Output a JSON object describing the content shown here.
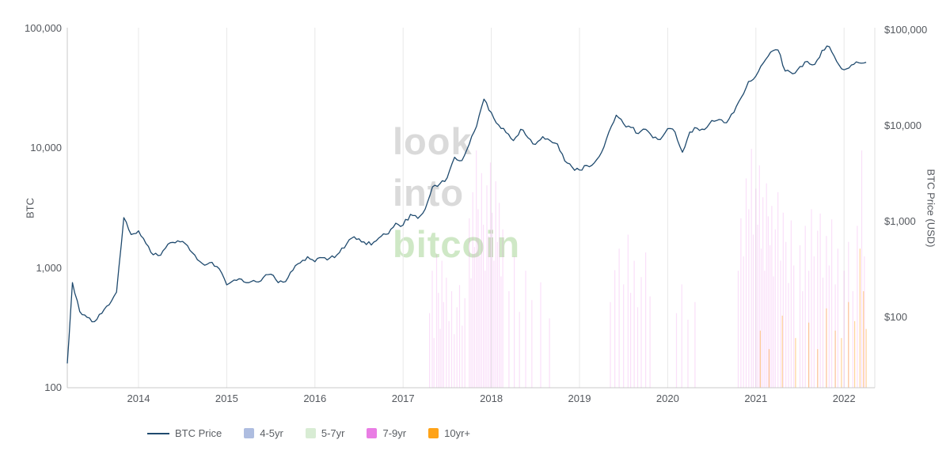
{
  "watermark": {
    "line1": "look",
    "line2": "into",
    "line3": "bitcoin",
    "gray": "#dadada",
    "green": "#cfe8c6"
  },
  "axes": {
    "left": {
      "title": "BTC",
      "tick_labels": [
        "100,000",
        "10,000",
        "1,000",
        "100"
      ],
      "tick_values": [
        100000,
        10000,
        1000,
        100
      ]
    },
    "right": {
      "title": "BTC Price (USD)",
      "tick_labels": [
        "$100,000",
        "$10,000",
        "$1,000",
        "$100"
      ],
      "tick_values": [
        100000,
        10000,
        1000,
        100
      ]
    },
    "x": {
      "tick_labels": [
        "2014",
        "2015",
        "2016",
        "2017",
        "2018",
        "2019",
        "2020",
        "2021",
        "2022"
      ],
      "tick_values": [
        2014,
        2015,
        2016,
        2017,
        2018,
        2019,
        2020,
        2021,
        2022
      ]
    }
  },
  "legend": {
    "items": [
      {
        "label": "BTC Price",
        "type": "line",
        "color": "#1f4a6e"
      },
      {
        "label": "4-5yr",
        "type": "square",
        "color": "#aebde0"
      },
      {
        "label": "5-7yr",
        "type": "square",
        "color": "#d8ecd4"
      },
      {
        "label": "7-9yr",
        "type": "square",
        "color": "#e97de4"
      },
      {
        "label": "10yr+",
        "type": "square",
        "color": "#ffa318"
      }
    ]
  },
  "chart_data": {
    "type": "line",
    "title": "",
    "x_axis": {
      "range": [
        2013.17,
        2022.3
      ],
      "ticks": [
        2014,
        2015,
        2016,
        2017,
        2018,
        2019,
        2020,
        2021,
        2022
      ]
    },
    "left_axis": {
      "label": "BTC",
      "scale": "log",
      "range": [
        100,
        100000
      ]
    },
    "right_axis": {
      "label": "BTC Price (USD)",
      "scale": "log",
      "range": [
        20,
        100000
      ]
    },
    "grid": "vertical-year-lines",
    "legend_position": "bottom",
    "series": [
      {
        "name": "BTC Price",
        "axis": "right",
        "color": "#1f4a6e",
        "x_start": 2013.1667,
        "x_step_years": 0.0833333,
        "values": [
          33,
          230,
          115,
          100,
          90,
          110,
          135,
          183,
          1100,
          732,
          800,
          590,
          450,
          445,
          580,
          600,
          620,
          500,
          400,
          350,
          375,
          320,
          218,
          245,
          250,
          230,
          235,
          262,
          282,
          230,
          236,
          310,
          370,
          430,
          380,
          420,
          415,
          450,
          530,
          670,
          660,
          575,
          610,
          700,
          745,
          960,
          920,
          1190,
          1080,
          1350,
          2300,
          2480,
          2870,
          4700,
          4340,
          6450,
          9900,
          19000,
          13800,
          10200,
          8500,
          7000,
          9200,
          7500,
          6400,
          7700,
          7000,
          6450,
          4300,
          3700,
          3450,
          3850,
          4100,
          5300,
          8600,
          12900,
          10500,
          9600,
          8300,
          9200,
          7500,
          7200,
          9350,
          8600,
          5300,
          8600,
          9450,
          9140,
          11350,
          11650,
          10780,
          13800,
          19700,
          29000,
          33100,
          45200,
          58800,
          62000,
          37300,
          35000,
          41500,
          47100,
          43800,
          61300,
          67000,
          47000,
          38500,
          43200,
          45500,
          46000
        ]
      }
    ],
    "age_band_spikes": {
      "4-5yr": {
        "color": "#aebde0",
        "opacity": 0.25,
        "points": []
      },
      "5-7yr": {
        "color": "#d8ecd4",
        "opacity": 0.25,
        "points": []
      },
      "7-9yr": {
        "color": "#e86ee2",
        "opacity": 0.22,
        "points": [
          [
            2017.3,
            420
          ],
          [
            2017.33,
            950
          ],
          [
            2017.35,
            260
          ],
          [
            2017.38,
            1300
          ],
          [
            2017.4,
            620
          ],
          [
            2017.42,
            310
          ],
          [
            2017.44,
            1150
          ],
          [
            2017.46,
            520
          ],
          [
            2017.49,
            830
          ],
          [
            2017.52,
            360
          ],
          [
            2017.55,
            640
          ],
          [
            2017.58,
            280
          ],
          [
            2017.61,
            470
          ],
          [
            2017.64,
            720
          ],
          [
            2017.67,
            330
          ],
          [
            2017.7,
            560
          ],
          [
            2017.75,
            2600
          ],
          [
            2017.77,
            820
          ],
          [
            2017.79,
            4300
          ],
          [
            2017.81,
            1500
          ],
          [
            2017.83,
            9600
          ],
          [
            2017.85,
            3100
          ],
          [
            2017.87,
            1250
          ],
          [
            2017.89,
            6200
          ],
          [
            2017.91,
            2300
          ],
          [
            2017.93,
            950
          ],
          [
            2017.95,
            4900
          ],
          [
            2017.97,
            1850
          ],
          [
            2017.99,
            7600
          ],
          [
            2018.01,
            2900
          ],
          [
            2018.03,
            1150
          ],
          [
            2018.05,
            5300
          ],
          [
            2018.07,
            1650
          ],
          [
            2018.09,
            3500
          ],
          [
            2018.11,
            850
          ],
          [
            2018.13,
            2100
          ],
          [
            2018.2,
            640
          ],
          [
            2018.26,
            1250
          ],
          [
            2018.32,
            430
          ],
          [
            2018.39,
            950
          ],
          [
            2018.46,
            540
          ],
          [
            2018.56,
            760
          ],
          [
            2018.66,
            380
          ],
          [
            2019.35,
            520
          ],
          [
            2019.4,
            960
          ],
          [
            2019.45,
            1450
          ],
          [
            2019.5,
            730
          ],
          [
            2019.55,
            1900
          ],
          [
            2019.58,
            620
          ],
          [
            2019.62,
            1150
          ],
          [
            2019.66,
            470
          ],
          [
            2019.7,
            840
          ],
          [
            2019.75,
            1350
          ],
          [
            2019.8,
            580
          ],
          [
            2020.1,
            420
          ],
          [
            2020.16,
            730
          ],
          [
            2020.23,
            370
          ],
          [
            2020.31,
            520
          ],
          [
            2020.8,
            950
          ],
          [
            2020.83,
            2600
          ],
          [
            2020.86,
            1250
          ],
          [
            2020.89,
            5600
          ],
          [
            2020.92,
            3100
          ],
          [
            2020.95,
            9900
          ],
          [
            2020.97,
            1900
          ],
          [
            2021.0,
            4600
          ],
          [
            2021.02,
            2300
          ],
          [
            2021.04,
            7200
          ],
          [
            2021.06,
            1450
          ],
          [
            2021.08,
            3900
          ],
          [
            2021.1,
            950
          ],
          [
            2021.12,
            5100
          ],
          [
            2021.14,
            2700
          ],
          [
            2021.16,
            1550
          ],
          [
            2021.18,
            3300
          ],
          [
            2021.2,
            850
          ],
          [
            2021.22,
            2100
          ],
          [
            2021.25,
            4300
          ],
          [
            2021.28,
            1150
          ],
          [
            2021.31,
            2900
          ],
          [
            2021.34,
            1650
          ],
          [
            2021.37,
            750
          ],
          [
            2021.4,
            2500
          ],
          [
            2021.43,
            1050
          ],
          [
            2021.5,
            1550
          ],
          [
            2021.53,
            640
          ],
          [
            2021.56,
            2250
          ],
          [
            2021.6,
            950
          ],
          [
            2021.63,
            3100
          ],
          [
            2021.66,
            1250
          ],
          [
            2021.7,
            2050
          ],
          [
            2021.73,
            2850
          ],
          [
            2021.76,
            830
          ],
          [
            2021.8,
            1850
          ],
          [
            2021.83,
            1050
          ],
          [
            2021.86,
            2550
          ],
          [
            2021.9,
            730
          ],
          [
            2021.93,
            1450
          ],
          [
            2022.0,
            950
          ],
          [
            2022.05,
            1650
          ],
          [
            2022.1,
            640
          ],
          [
            2022.15,
            2250
          ],
          [
            2022.2,
            9600
          ],
          [
            2022.23,
            1250
          ]
        ]
      },
      "10yr+": {
        "color": "#ff9d1c",
        "opacity": 0.45,
        "points": [
          [
            2021.05,
            300
          ],
          [
            2021.15,
            210
          ],
          [
            2021.3,
            400
          ],
          [
            2021.45,
            260
          ],
          [
            2021.6,
            350
          ],
          [
            2021.7,
            210
          ],
          [
            2021.8,
            460
          ],
          [
            2021.9,
            300
          ],
          [
            2021.97,
            260
          ],
          [
            2022.05,
            520
          ],
          [
            2022.12,
            360
          ],
          [
            2022.18,
            1450
          ],
          [
            2022.22,
            640
          ],
          [
            2022.25,
            310
          ]
        ]
      }
    }
  }
}
